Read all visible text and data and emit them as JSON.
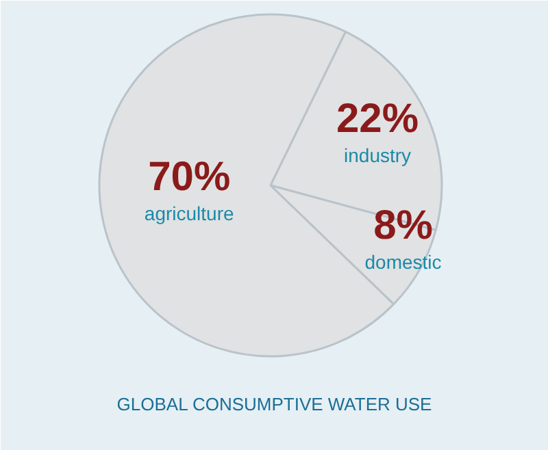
{
  "chart_data": {
    "type": "pie",
    "title": "GLOBAL CONSUMPTIVE WATER USE",
    "categories": [
      "agriculture",
      "industry",
      "domestic"
    ],
    "values": [
      70,
      22,
      8
    ],
    "colors": [
      "#e1e2e3",
      "#e1e2e3",
      "#e1e2e3"
    ],
    "value_labels": [
      "70%",
      "22%",
      "8%"
    ]
  }
}
